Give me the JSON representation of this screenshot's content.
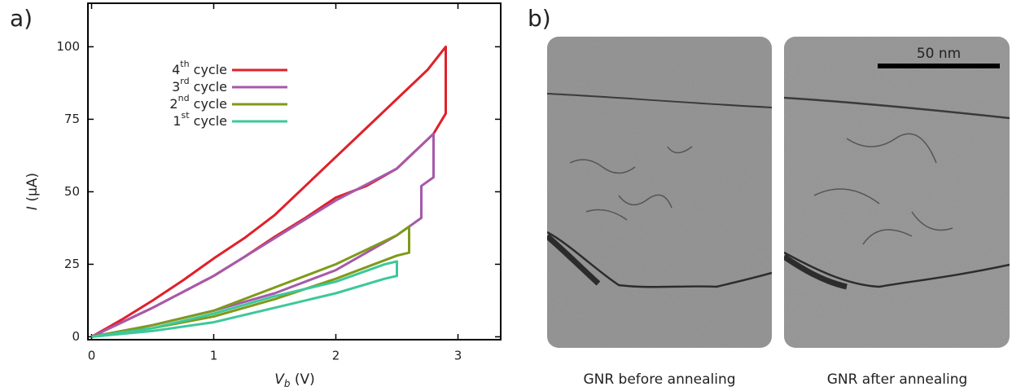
{
  "chart_data": {
    "type": "line",
    "xlabel": "Vb (V)",
    "ylabel": "I (µA)",
    "xlim": [
      -0.03,
      3.35
    ],
    "xticks": [
      0,
      1,
      2,
      3
    ],
    "ylim": [
      -1,
      115
    ],
    "yticks": [
      0,
      25,
      50,
      75,
      100
    ],
    "grid": false,
    "legend": "upper left",
    "series": [
      {
        "name": "4th cycle",
        "color": "#e0202a",
        "x": [
          0,
          0.25,
          0.5,
          0.75,
          1,
          1.25,
          1.5,
          1.75,
          2,
          2.25,
          2.5,
          2.75,
          2.9,
          2.9,
          2.8,
          2.5,
          2.25,
          2,
          1.75,
          1.5,
          1.25,
          1,
          0.75,
          0.5,
          0.25,
          0
        ],
        "values": [
          0,
          6,
          12.5,
          19.5,
          27,
          34,
          42,
          52,
          62,
          72,
          82,
          92,
          100,
          77,
          70,
          58,
          52,
          48,
          41,
          34.5,
          27.5,
          21,
          15.5,
          10,
          5,
          0
        ]
      },
      {
        "name": "3rd cycle",
        "color": "#a55aaa",
        "x": [
          0,
          0.5,
          1,
          1.5,
          2,
          2.5,
          2.7,
          2.7,
          2.8,
          2.8,
          2.5,
          2,
          1.5,
          1,
          0.5,
          0
        ],
        "values": [
          0,
          4,
          9,
          15,
          23,
          35,
          41,
          52,
          55,
          70,
          58,
          47,
          34,
          21,
          10,
          0
        ]
      },
      {
        "name": "2nd cycle",
        "color": "#7f9a1a",
        "x": [
          0,
          0.5,
          1,
          1.5,
          2,
          2.5,
          2.6,
          2.6,
          2.5,
          2,
          1.5,
          1,
          0.5,
          0
        ],
        "values": [
          0,
          3,
          7,
          13,
          20,
          28,
          29,
          38,
          35,
          25,
          17,
          9,
          4,
          0
        ]
      },
      {
        "name": "1st cycle",
        "color": "#3cc89a",
        "x": [
          0,
          0.5,
          1,
          1.5,
          2,
          2.4,
          2.5,
          2.5,
          2.4,
          2,
          1.5,
          1,
          0.5,
          0
        ],
        "values": [
          0,
          2,
          5,
          10,
          15,
          20,
          21,
          26,
          25,
          19,
          14,
          8,
          3,
          0
        ]
      }
    ]
  },
  "panel_labels": [
    "a)",
    "b)"
  ],
  "images": {
    "scale_bar": "50 nm",
    "captions": [
      "GNR before annealing",
      "GNR after annealing"
    ]
  }
}
